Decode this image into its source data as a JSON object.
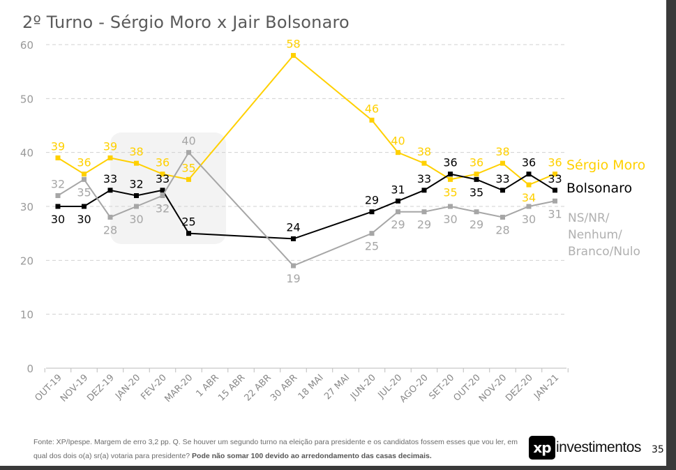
{
  "chart_data": {
    "type": "line",
    "title": "2º Turno - Sérgio Moro x Jair Bolsonaro",
    "categories": [
      "OUT-19",
      "NOV-19",
      "DEZ-19",
      "JAN-20",
      "FEV-20",
      "MAR-20",
      "1 ABR",
      "15 ABR",
      "22 ABR",
      "30 ABR",
      "18 MAI",
      "27 MAI",
      "JUN-20",
      "JUL-20",
      "AGO-20",
      "SET-20",
      "OUT-20",
      "NOV-20",
      "DEZ-20",
      "JAN-21"
    ],
    "ylim": [
      0,
      60
    ],
    "yticks": [
      0,
      10,
      20,
      30,
      40,
      50,
      60
    ],
    "grid": true,
    "legend": "right (end labels)",
    "series": [
      {
        "name": "Sérgio Moro",
        "color": "#FFD000",
        "values": [
          39,
          36,
          39,
          38,
          36,
          35,
          null,
          null,
          null,
          58,
          null,
          null,
          46,
          40,
          38,
          35,
          36,
          38,
          34,
          36
        ]
      },
      {
        "name": "Bolsonaro",
        "color": "#000000",
        "values": [
          30,
          30,
          33,
          32,
          33,
          25,
          null,
          null,
          null,
          24,
          null,
          null,
          29,
          31,
          33,
          36,
          35,
          33,
          36,
          33
        ]
      },
      {
        "name": "NS/NR/ Nenhum/ Branco/Nulo",
        "color": "#A6A6A6",
        "values": [
          32,
          35,
          28,
          30,
          32,
          40,
          null,
          null,
          null,
          19,
          null,
          null,
          25,
          29,
          29,
          30,
          29,
          28,
          30,
          31
        ]
      }
    ]
  },
  "footer": {
    "source": "Fonte: XP/Ipespe. Margem de erro 3,2 pp. Q. Se houver um segundo turno na eleição para presidente e os candidatos fossem esses que vou ler, em qual dos dois o(a) sr(a) votaria para presidente?",
    "note": "Pode não somar 100 devido ao arredondamento das casas decimais."
  },
  "logo": {
    "mark": "xp",
    "text": "investimentos"
  },
  "page_number": "35"
}
